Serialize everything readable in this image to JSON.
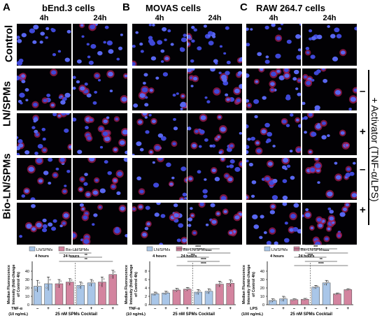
{
  "panels": [
    {
      "letter": "A",
      "title": "bEnd.3 cells"
    },
    {
      "letter": "B",
      "title": "MOVAS cells"
    },
    {
      "letter": "C",
      "title": "RAW 264.7 cells"
    }
  ],
  "time_labels": [
    "4h",
    "24h"
  ],
  "row_labels": {
    "control": "Control",
    "ln": "LN/SPMs",
    "bio": "Bio-LN/SPMs"
  },
  "side_signs": {
    "minus": "–",
    "plus": "+"
  },
  "activator_label": "+ Activator (TNF-α/LPS)",
  "legend": {
    "a": "LN/SPMs",
    "b": "Bio-LN/SPMs",
    "a_time": "4 hours",
    "b_time": "24 hours"
  },
  "ylabel_lines": [
    "Median Fluorescence",
    "Intensity (fold-change",
    "of Control 4h)"
  ],
  "cocktail": "25 nM SPMs Cocktail",
  "colors": {
    "ln": "#a9c6e8",
    "bio": "#d3849f",
    "bio_light": "#e9b7c6"
  },
  "chart_data": [
    {
      "type": "bar",
      "treatment_label": "TNF-α",
      "treatment_unit": "(10 ng/mL)",
      "categories": [
        "–",
        "+",
        "–",
        "+",
        "–",
        "+",
        "–",
        "+"
      ],
      "values": [
        22,
        25,
        25,
        27,
        23,
        26,
        27,
        36
      ],
      "errors": [
        7,
        8,
        5,
        4,
        4,
        4,
        6,
        5
      ],
      "ylim": [
        0,
        50
      ],
      "yticks": [
        0,
        10,
        20,
        30,
        40
      ],
      "sig": [
        "**",
        "**",
        "*"
      ]
    },
    {
      "type": "bar",
      "treatment_label": "TNF-α",
      "treatment_unit": "(10 ng/mL)",
      "categories": [
        "–",
        "+",
        "–",
        "+",
        "–",
        "+",
        "–",
        "+"
      ],
      "values": [
        2.6,
        2.8,
        3.5,
        3.7,
        3.0,
        3.2,
        4.9,
        5.1
      ],
      "errors": [
        0.4,
        0.4,
        0.4,
        0.4,
        0.6,
        0.6,
        0.7,
        0.8
      ],
      "ylim": [
        0,
        10
      ],
      "yticks": [
        0,
        2,
        4,
        6,
        8
      ],
      "sig": [
        "****",
        "****",
        "***",
        "****",
        "****"
      ]
    },
    {
      "type": "bar",
      "treatment_label": "LPS",
      "treatment_unit": "(100 ng/mL)",
      "categories": [
        "–",
        "+",
        "–",
        "+",
        "–",
        "+",
        "–",
        "+"
      ],
      "values": [
        5,
        7,
        6,
        6.5,
        21,
        26,
        13,
        18
      ],
      "errors": [
        2,
        3,
        1,
        1,
        2,
        3,
        1,
        1
      ],
      "ylim": [
        0,
        50
      ],
      "yticks": [
        0,
        10,
        20,
        30,
        40
      ],
      "sig": [
        "****",
        "**",
        "****",
        "****",
        "***",
        "****",
        "****"
      ]
    }
  ]
}
